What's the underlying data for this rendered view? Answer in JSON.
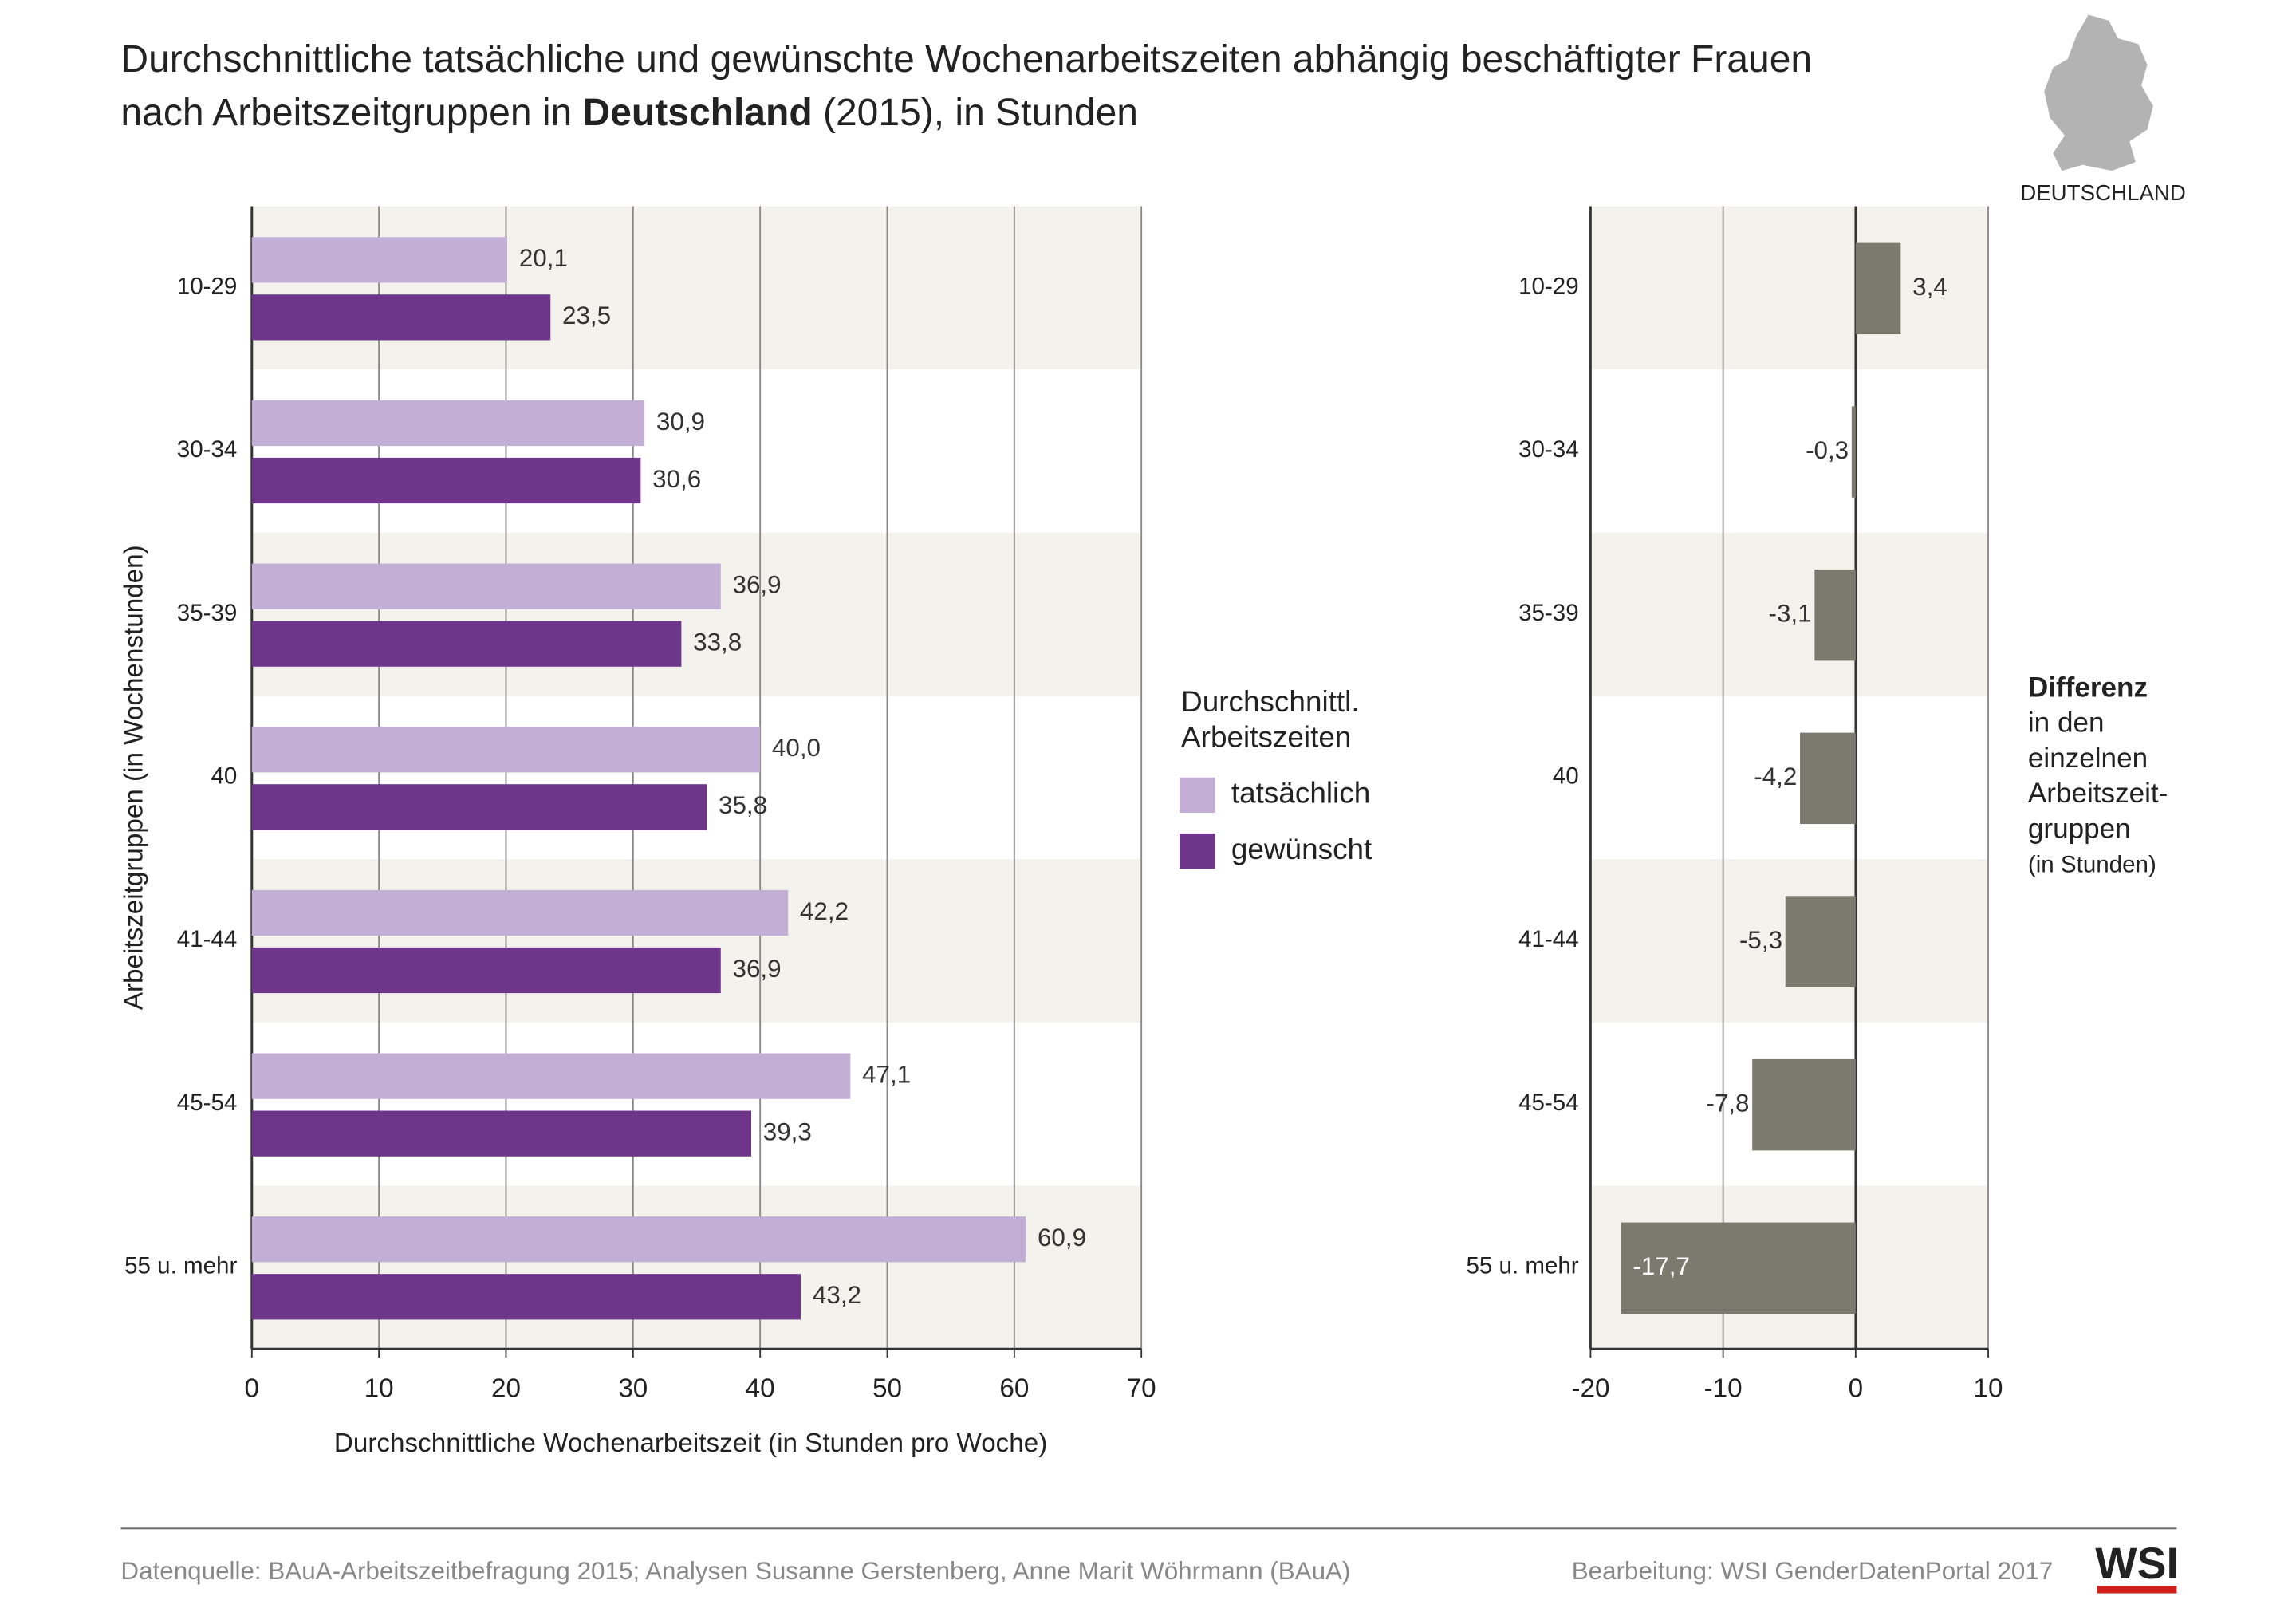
{
  "header": {
    "title_line1": "Durchschnittliche tatsächliche und gewünschte Wochenarbeitszeiten abhängig beschäftigter Frauen",
    "title_line2_pre": "nach Arbeitszeitgruppen in ",
    "title_bold": "Deutschland",
    "title_line2_post": " (2015), in Stunden",
    "map_label": "DEUTSCHLAND"
  },
  "footer": {
    "source": "Datenquelle: BAuA-Arbeitszeitbefragung 2015; Analysen Susanne Gerstenberg, Anne Marit Wöhrmann (BAuA)",
    "credit": "Bearbeitung: WSI GenderDatenPortal 2017",
    "logo": "WSI"
  },
  "chart_data": [
    {
      "type": "hbar",
      "y_label": "Arbeitszeitgruppen (in Wochenstunden)",
      "x_label": "Durchschnittliche Wochenarbeitszeit (in Stunden pro Woche)",
      "legend_title": [
        "Durchschnittl.",
        "Arbeitszeiten"
      ],
      "categories": [
        "10-29",
        "30-34",
        "35-39",
        "40",
        "41-44",
        "45-54",
        "55 u. mehr"
      ],
      "series": [
        {
          "name": "tatsächlich",
          "color": "#c3aed6",
          "values": [
            20.1,
            30.9,
            36.9,
            40.0,
            42.2,
            47.1,
            60.9
          ],
          "value_labels": [
            "20,1",
            "30,9",
            "36,9",
            "40,0",
            "42,2",
            "47,1",
            "60,9"
          ]
        },
        {
          "name": "gewünscht",
          "color": "#6e368b",
          "values": [
            23.5,
            30.6,
            33.8,
            35.8,
            36.9,
            39.3,
            43.2
          ],
          "value_labels": [
            "23,5",
            "30,6",
            "33,8",
            "35,8",
            "36,9",
            "39,3",
            "43,2"
          ]
        }
      ],
      "xlim": [
        0,
        70
      ],
      "xticks": [
        0,
        10,
        20,
        30,
        40,
        50,
        60,
        70
      ],
      "grid": true
    },
    {
      "type": "hbar",
      "annotation": [
        "Differenz",
        "in den",
        "einzelnen",
        "Arbeitszeit-",
        "gruppen",
        "(in Stunden)"
      ],
      "categories": [
        "10-29",
        "30-34",
        "35-39",
        "40",
        "41-44",
        "45-54",
        "55 u. mehr"
      ],
      "series": [
        {
          "color": "#7a7a6e",
          "values": [
            3.4,
            -0.3,
            -3.1,
            -4.2,
            -5.3,
            -7.8,
            -17.7
          ],
          "value_labels": [
            "3,4",
            "-0,3",
            "-3,1",
            "-4,2",
            "-5,3",
            "-7,8",
            "-17,7"
          ]
        }
      ],
      "xlim": [
        -20,
        10
      ],
      "xticks": [
        -20,
        -10,
        0,
        10
      ],
      "grid": true
    }
  ]
}
